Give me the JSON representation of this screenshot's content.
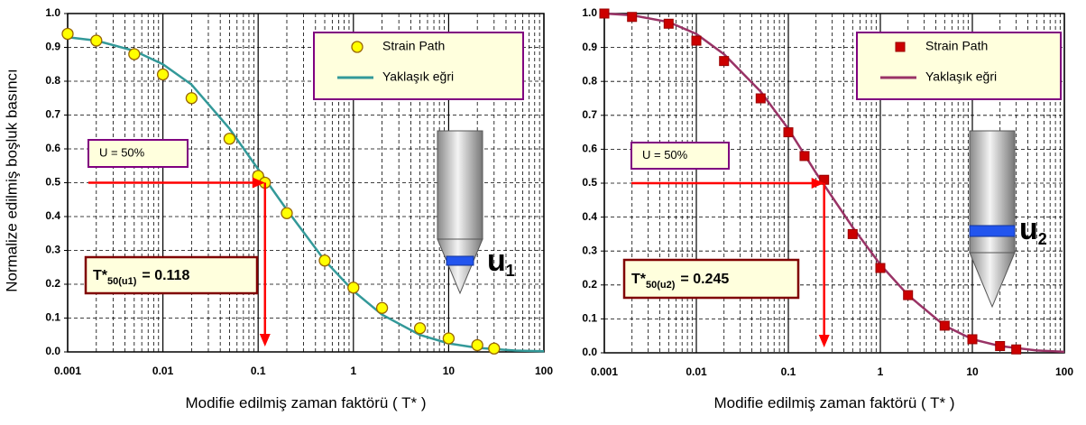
{
  "chart_data": [
    {
      "type": "scatter",
      "y_label": "Normalize edilmiş boşluk basıncı",
      "x_label": "Modifie edilmiş zaman faktörü ( T* )",
      "xlim": [
        0.001,
        100
      ],
      "xticks": [
        0.001,
        0.01,
        0.1,
        1,
        10,
        100
      ],
      "xscale": "log",
      "ylim": [
        0,
        1
      ],
      "yticks": [
        {
          "value": 0,
          "label": "0.0"
        },
        0.1,
        0.2,
        0.3,
        0.4,
        0.5,
        0.6,
        0.7,
        0.8,
        0.9,
        {
          "value": 1,
          "label": "1.0"
        }
      ],
      "grid": true,
      "series": [
        {
          "name": "Strain Path",
          "type": "scatter",
          "marker": "circle",
          "color": "#ffff00",
          "edge": "#996600",
          "x": [
            0.001,
            0.002,
            0.005,
            0.01,
            0.02,
            0.05,
            0.1,
            0.118,
            0.2,
            0.5,
            1,
            2,
            5,
            10,
            20,
            30
          ],
          "values": [
            0.94,
            0.92,
            0.88,
            0.82,
            0.75,
            0.63,
            0.52,
            0.5,
            0.41,
            0.27,
            0.19,
            0.13,
            0.07,
            0.04,
            0.02,
            0.01
          ]
        },
        {
          "name": "Yaklaşık eğri",
          "type": "line",
          "color": "#339999",
          "x": [
            0.001,
            0.002,
            0.005,
            0.01,
            0.02,
            0.05,
            0.1,
            0.2,
            0.5,
            1,
            2,
            5,
            10,
            20,
            50,
            100
          ],
          "values": [
            0.93,
            0.92,
            0.89,
            0.85,
            0.79,
            0.66,
            0.54,
            0.42,
            0.27,
            0.18,
            0.11,
            0.05,
            0.025,
            0.012,
            0.004,
            0.002
          ]
        }
      ],
      "u_level": {
        "value": 0.5,
        "label": "U = 50%"
      },
      "t50": {
        "symbol": "T*",
        "sub": "50(u1)",
        "value": 0.118,
        "label": "= 0.118"
      },
      "probe": {
        "label": "u",
        "sub": "1"
      }
    },
    {
      "type": "scatter",
      "x_label": "Modifie edilmiş zaman faktörü ( T* )",
      "xlim": [
        0.001,
        100
      ],
      "xticks": [
        0.001,
        0.01,
        0.1,
        1,
        10,
        100
      ],
      "xscale": "log",
      "ylim": [
        0,
        1
      ],
      "yticks": [
        {
          "value": 0,
          "label": "0.0"
        },
        0.1,
        0.2,
        0.3,
        0.4,
        0.5,
        0.6,
        0.7,
        0.8,
        0.9,
        {
          "value": 1,
          "label": "1.0"
        }
      ],
      "grid": true,
      "series": [
        {
          "name": "Strain Path",
          "type": "scatter",
          "marker": "square",
          "color": "#cc0000",
          "edge": "#990000",
          "x": [
            0.001,
            0.002,
            0.005,
            0.01,
            0.02,
            0.05,
            0.1,
            0.15,
            0.245,
            0.5,
            1,
            2,
            5,
            10,
            20,
            30
          ],
          "values": [
            1.0,
            0.99,
            0.97,
            0.92,
            0.86,
            0.75,
            0.65,
            0.58,
            0.51,
            0.35,
            0.25,
            0.17,
            0.08,
            0.04,
            0.02,
            0.01
          ]
        },
        {
          "name": "Yaklaşık eğri",
          "type": "line",
          "color": "#993366",
          "x": [
            0.001,
            0.002,
            0.005,
            0.01,
            0.02,
            0.05,
            0.1,
            0.2,
            0.5,
            1,
            2,
            5,
            10,
            20,
            50,
            100
          ],
          "values": [
            1.0,
            0.995,
            0.975,
            0.94,
            0.88,
            0.77,
            0.66,
            0.53,
            0.37,
            0.26,
            0.17,
            0.08,
            0.04,
            0.02,
            0.007,
            0.003
          ]
        }
      ],
      "u_level": {
        "value": 0.5,
        "label": "U = 50%"
      },
      "t50": {
        "symbol": "T*",
        "sub": "50(u2)",
        "value": 0.245,
        "label": "= 0.245"
      },
      "probe": {
        "label": "u",
        "sub": "2"
      }
    }
  ]
}
